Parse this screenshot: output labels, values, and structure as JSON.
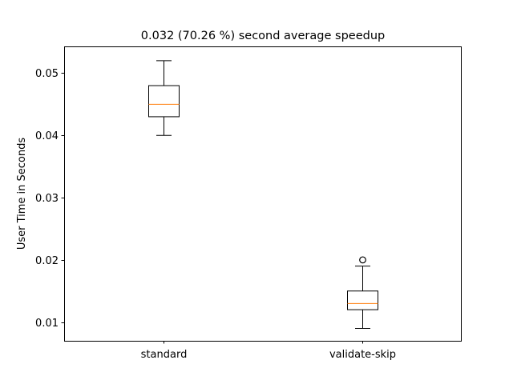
{
  "chart_data": {
    "type": "box",
    "title": "0.032 (70.26 %) second average speedup",
    "xlabel": "",
    "ylabel": "User Time in Seconds",
    "ylim": [
      0.007,
      0.0543
    ],
    "yticks": [
      0.01,
      0.02,
      0.03,
      0.04,
      0.05
    ],
    "ytick_labels": [
      "0.01",
      "0.02",
      "0.03",
      "0.04",
      "0.05"
    ],
    "categories": [
      "standard",
      "validate-skip"
    ],
    "boxes": [
      {
        "name": "standard",
        "whisker_low": 0.04,
        "q1": 0.043,
        "median": 0.045,
        "q3": 0.048,
        "whisker_high": 0.052,
        "outliers": []
      },
      {
        "name": "validate-skip",
        "whisker_low": 0.009,
        "q1": 0.012,
        "median": 0.013,
        "q3": 0.015,
        "whisker_high": 0.019,
        "outliers": [
          0.02
        ]
      }
    ],
    "grid": false,
    "colors": {
      "box": "#000000",
      "median": "#ff7f0e",
      "background": "#ffffff"
    }
  }
}
